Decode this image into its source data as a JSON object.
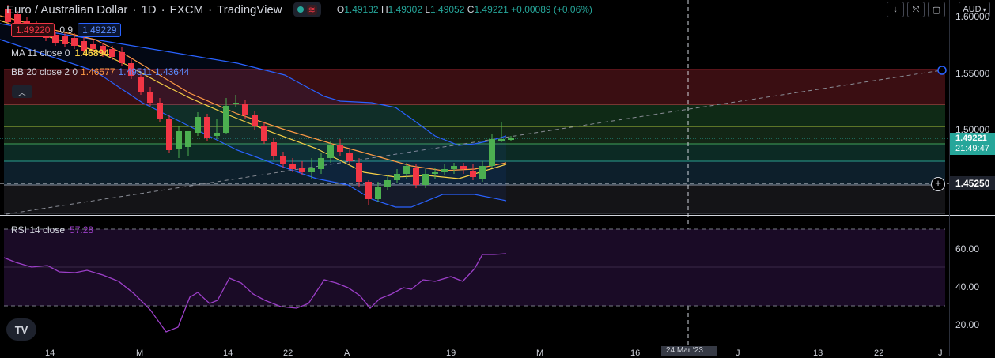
{
  "header": {
    "symbol": "Euro / Australian Dollar",
    "interval": "1D",
    "exchange": "FXCM",
    "source": "TradingView",
    "ohlc": {
      "open_label": "O",
      "open": "1.49132",
      "high_label": "H",
      "high": "1.49302",
      "low_label": "L",
      "low": "1.49052",
      "close_label": "C",
      "close": "1.49221",
      "change": "+0.00089 (+0.06%)"
    },
    "market_status_icon": "market-open-dot-icon",
    "wave_icon": "wave-icon"
  },
  "quote": {
    "sell": "1.49220",
    "spread": "0.9",
    "buy": "1.49229"
  },
  "indicators": {
    "ma": {
      "label": "MA 11 close 0",
      "value": "1.46894"
    },
    "bb": {
      "label": "BB 20 close 2 0",
      "basis": "1.46577",
      "upper": "1.49511",
      "lower": "1.43644"
    },
    "rsi": {
      "label": "RSI 14 close",
      "value": "57.28"
    }
  },
  "toolbar": {
    "currency": "AUD",
    "buttons": [
      "arrow-down-icon",
      "collapse-icon",
      "fullscreen-icon"
    ]
  },
  "price_axis": {
    "labels": [
      "1.60000",
      "1.55000",
      "1.50000",
      "1.45250"
    ],
    "last_price": "1.49221",
    "countdown": "21:49:47",
    "crosshair_price": "1.45250"
  },
  "rsi_axis": {
    "labels": [
      "60.00",
      "40.00",
      "20.00"
    ]
  },
  "time_axis": {
    "labels": [
      "14",
      "M",
      "14",
      "22",
      "A",
      "19",
      "M",
      "16",
      "J",
      "13",
      "22",
      "J"
    ],
    "crosshair_label": "24 Mar '23"
  },
  "logo": "TV",
  "colors": {
    "up": "#26a69a",
    "up_candle": "#4caf50",
    "down": "#f23645",
    "ma": "#f7d046",
    "bb_basis": "#ff9b45",
    "bb_band": "#2962ff",
    "rsi": "#9c3fc8"
  }
}
